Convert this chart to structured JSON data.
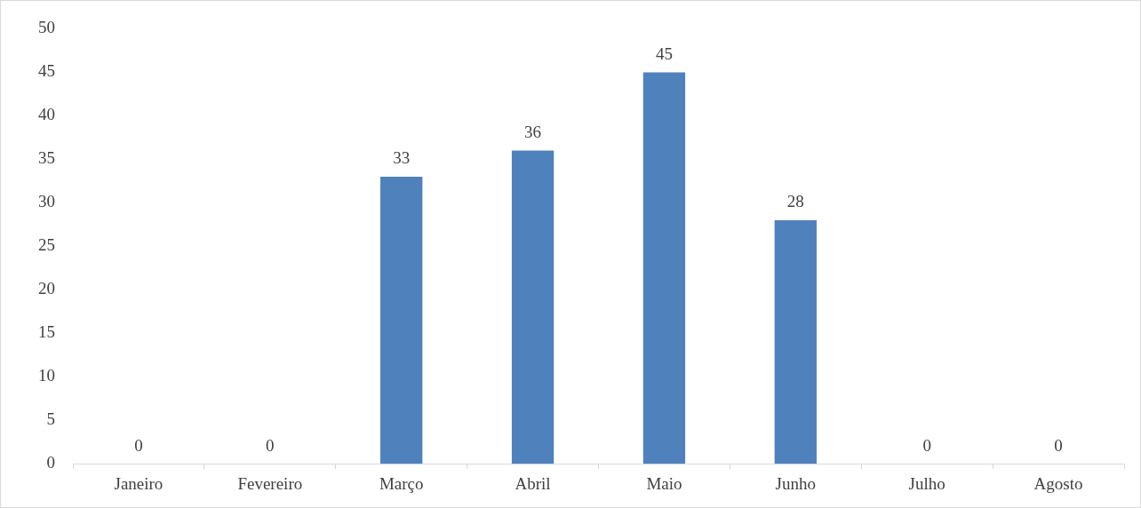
{
  "chart_data": {
    "type": "bar",
    "categories": [
      "Janeiro",
      "Fevereiro",
      "Março",
      "Abril",
      "Maio",
      "Junho",
      "Julho",
      "Agosto"
    ],
    "values": [
      0,
      0,
      33,
      36,
      45,
      28,
      0,
      0
    ],
    "color": "#4f81bd",
    "ylim": [
      0,
      50
    ],
    "yticks": [
      0,
      5,
      10,
      15,
      20,
      25,
      30,
      35,
      40,
      45,
      50
    ],
    "grid": false,
    "legend": false,
    "data_labels": true
  }
}
